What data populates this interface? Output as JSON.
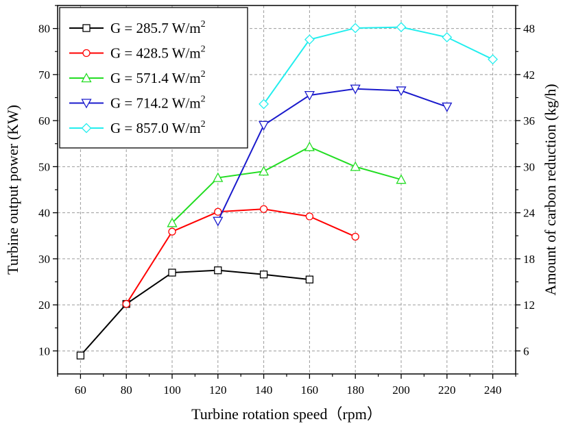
{
  "chart_data": {
    "type": "line",
    "title": "",
    "xlabel": "Turbine rotation speed（rpm）",
    "ylabel": "Turbine output power (KW)",
    "ylabel_right": "Amount of carbon reduction (kg/h)",
    "xlim": [
      50,
      250
    ],
    "ylim": [
      5,
      85
    ],
    "ylim_right": [
      3,
      51
    ],
    "xticks": [
      "60",
      "80",
      "100",
      "120",
      "140",
      "160",
      "180",
      "200",
      "220",
      "240"
    ],
    "yticks": [
      "10",
      "20",
      "30",
      "40",
      "50",
      "60",
      "70",
      "80"
    ],
    "yticks_right": [
      "6",
      "12",
      "18",
      "24",
      "30",
      "36",
      "42",
      "48"
    ],
    "grid": true,
    "legend_position": "top-left",
    "series": [
      {
        "name_main": "G = 285.7 W/m",
        "name_sup": "2",
        "color": "#000000",
        "marker": "square",
        "x": [
          60,
          80,
          100,
          120,
          140,
          160
        ],
        "y": [
          9,
          20.2,
          27,
          27.5,
          26.6,
          25.5
        ]
      },
      {
        "name_main": "G = 428.5 W/m",
        "name_sup": "2",
        "color": "#ff0000",
        "marker": "circle",
        "x": [
          80,
          100,
          120,
          140,
          160,
          180
        ],
        "y": [
          20.2,
          35.9,
          40.2,
          40.8,
          39.2,
          34.8
        ]
      },
      {
        "name_main": "G = 571.4 W/m",
        "name_sup": "2",
        "color": "#22dd22",
        "marker": "triangle-up",
        "x": [
          100,
          120,
          140,
          160,
          180,
          200
        ],
        "y": [
          37.8,
          47.6,
          49,
          54.3,
          50,
          47.2
        ]
      },
      {
        "name_main": "G = 714.2 W/m",
        "name_sup": "2",
        "color": "#1a1acc",
        "marker": "triangle-down",
        "x": [
          120,
          140,
          160,
          180,
          200,
          220
        ],
        "y": [
          38.2,
          59,
          65.5,
          66.9,
          66.5,
          63
        ]
      },
      {
        "name_main": "G = 857.0 W/m",
        "name_sup": "2",
        "color": "#22eeee",
        "marker": "diamond",
        "x": [
          140,
          160,
          180,
          200,
          220,
          240
        ],
        "y": [
          63.6,
          77.6,
          80.1,
          80.3,
          78.1,
          73.3
        ]
      }
    ]
  }
}
